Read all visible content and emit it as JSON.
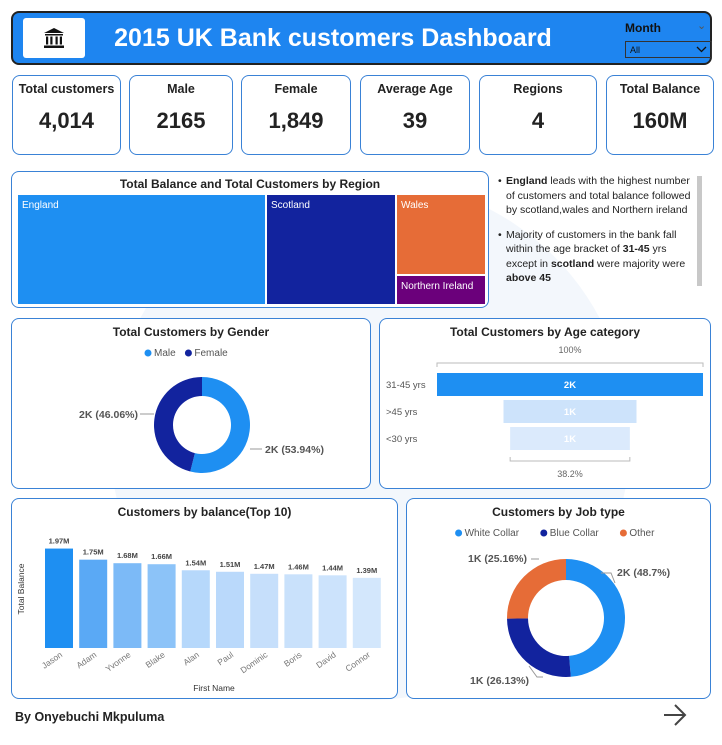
{
  "header": {
    "title": "2015 UK Bank customers Dashboard",
    "logo_icon": "bank-icon",
    "slicer": {
      "label": "Month",
      "selected": "All"
    }
  },
  "kpis": [
    {
      "label": "Total customers",
      "value": "4,014"
    },
    {
      "label": "Male",
      "value": "2165"
    },
    {
      "label": "Female",
      "value": "1,849"
    },
    {
      "label": "Average Age",
      "value": "39"
    },
    {
      "label": "Regions",
      "value": "4"
    },
    {
      "label": "Total Balance",
      "value": "160M"
    }
  ],
  "region_panel": {
    "title": "Total Balance and Total Customers by Region",
    "tiles": [
      {
        "label": "England",
        "color": "#1e8ff2"
      },
      {
        "label": "Scotland",
        "color": "#12239e"
      },
      {
        "label": "Wales",
        "color": "#e66c37"
      },
      {
        "label": "Northern Ireland",
        "color": "#6b007b"
      }
    ]
  },
  "notes": {
    "note1": {
      "b1": "England",
      "t1": " leads with the highest number of customers and total balance followed by scotland,wales and Northern ireland"
    },
    "note2": {
      "t1": "Majority of customers in the bank fall within the age bracket of ",
      "b1": "31-45",
      "t2": " yrs except in ",
      "b2": "scotland",
      "t3": " were majority were ",
      "b3": "above 45"
    }
  },
  "gender_panel": {
    "title": "Total Customers by Gender",
    "legend": [
      {
        "name": "Male",
        "color": "#1e8ff2"
      },
      {
        "name": "Female",
        "color": "#12239e"
      }
    ],
    "chart_data": {
      "type": "pie",
      "categories": [
        "Male",
        "Female"
      ],
      "values": [
        53.94,
        46.06
      ],
      "labels": [
        "2K (53.94%)",
        "2K (46.06%)"
      ]
    }
  },
  "age_panel": {
    "title": "Total Customers by Age category",
    "top_label": "100%",
    "bottom_label": "38.2%",
    "chart_data": {
      "type": "bar",
      "categories": [
        "31-45 yrs",
        ">45 yrs",
        "<30 yrs"
      ],
      "values": [
        2000,
        1000,
        900
      ],
      "data_labels": [
        "2K",
        "1K",
        "1K"
      ],
      "colors": [
        "#1e8ff2",
        "#cde3fb",
        "#dbeafc"
      ]
    }
  },
  "balance_panel": {
    "title": "Customers by balance(Top 10)",
    "chart_data": {
      "type": "bar",
      "categories": [
        "Jason",
        "Adam",
        "Yvonne",
        "Blake",
        "Alan",
        "Paul",
        "Dominic",
        "Boris",
        "David",
        "Connor"
      ],
      "values": [
        1.97,
        1.75,
        1.68,
        1.66,
        1.54,
        1.51,
        1.47,
        1.46,
        1.44,
        1.39
      ],
      "data_labels": [
        "1.97M",
        "1.75M",
        "1.68M",
        "1.66M",
        "1.54M",
        "1.51M",
        "1.47M",
        "1.46M",
        "1.44M",
        "1.39M"
      ],
      "xlabel": "First Name",
      "ylabel": "Total Balance",
      "colors": [
        "#1e8ff2",
        "#5aa9f5",
        "#7cbaf7",
        "#8cc3f8",
        "#b6d8fb",
        "#bad9fb",
        "#c6dffb",
        "#c9e1fb",
        "#cce3fc",
        "#d3e7fc"
      ]
    }
  },
  "job_panel": {
    "title": "Customers by Job type",
    "legend": [
      {
        "name": "White Collar",
        "color": "#1e8ff2"
      },
      {
        "name": "Blue Collar",
        "color": "#12239e"
      },
      {
        "name": "Other",
        "color": "#e66c37"
      }
    ],
    "chart_data": {
      "type": "pie",
      "categories": [
        "White Collar",
        "Blue Collar",
        "Other"
      ],
      "values": [
        48.7,
        26.13,
        25.16
      ],
      "labels": [
        "2K (48.7%)",
        "1K (26.13%)",
        "1K (25.16%)"
      ]
    }
  },
  "footer": {
    "author": "By Onyebuchi Mkpuluma",
    "next_icon": "arrow-right-icon"
  }
}
